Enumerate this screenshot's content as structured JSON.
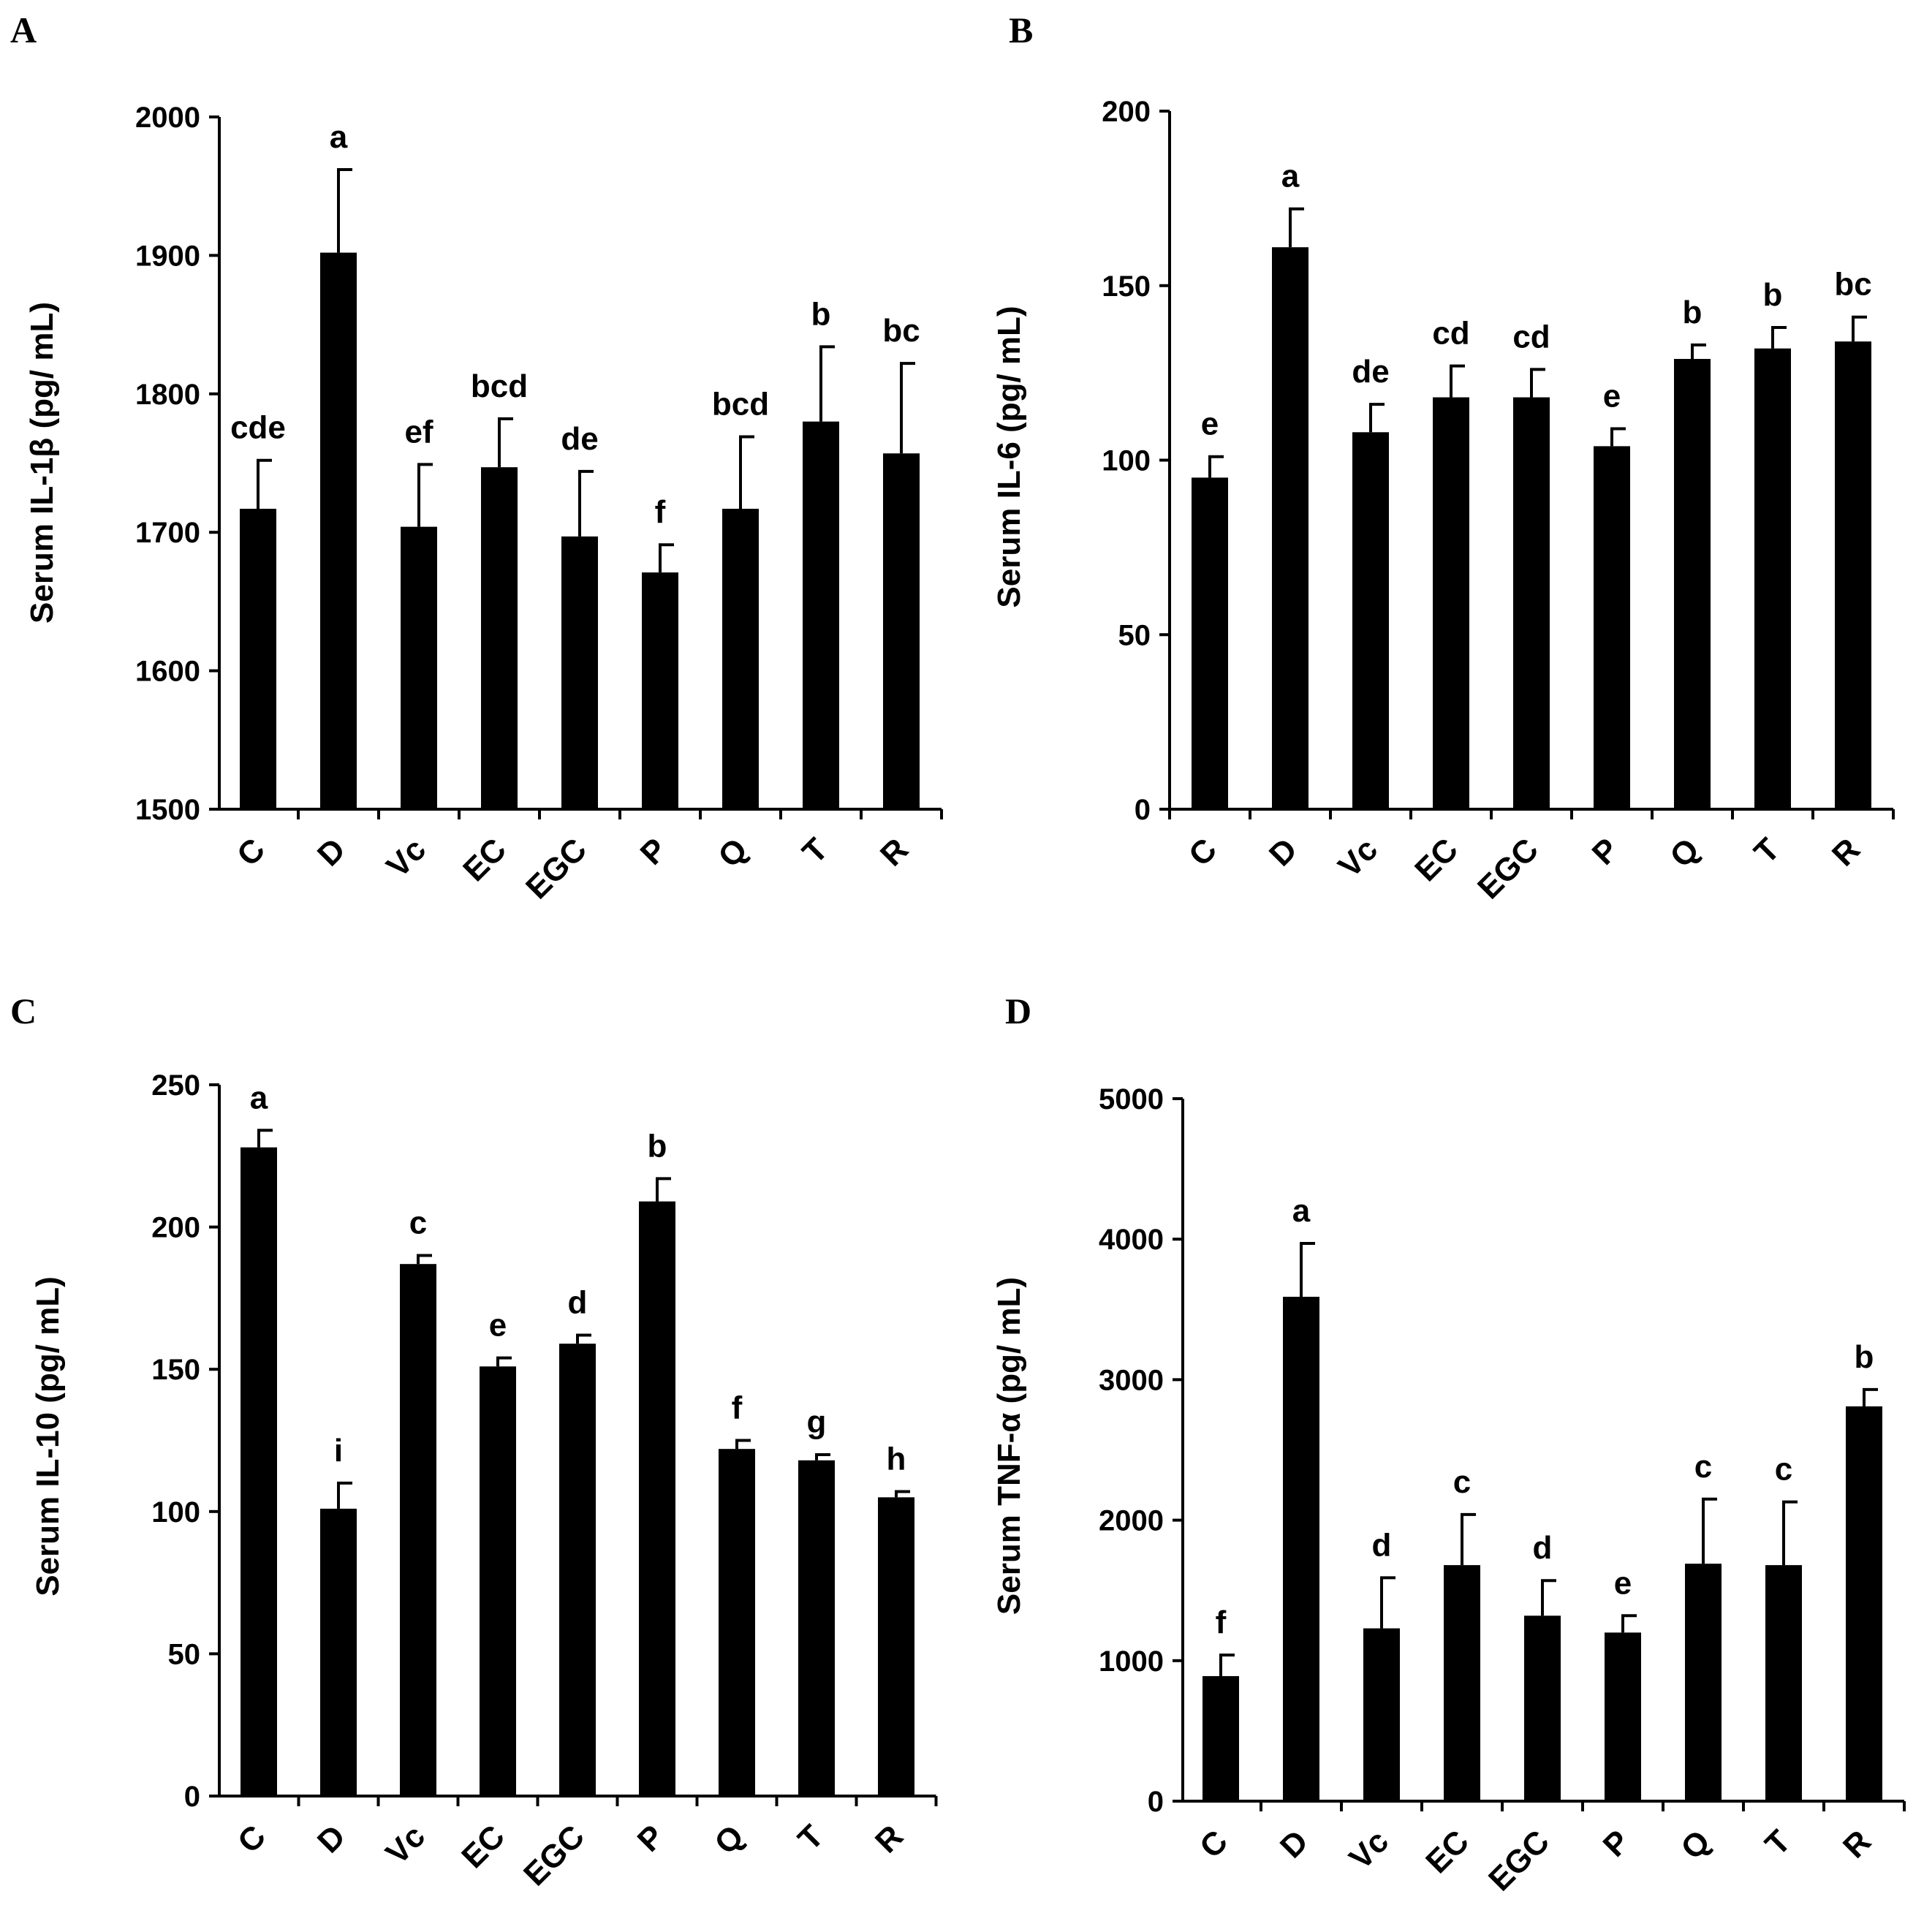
{
  "chart_data": [
    {
      "panel": "A",
      "type": "bar",
      "ylabel": "Serum IL-1β (pg/ mL)",
      "ylim": [
        1500,
        2000
      ],
      "yticks": [
        1500,
        1600,
        1700,
        1800,
        1900,
        2000
      ],
      "categories": [
        "C",
        "D",
        "Vc",
        "EC",
        "EGC",
        "P",
        "Q",
        "T",
        "R"
      ],
      "values": [
        1717,
        1902,
        1704,
        1747,
        1697,
        1671,
        1717,
        1780,
        1757
      ],
      "errors": [
        35,
        60,
        45,
        35,
        47,
        20,
        52,
        54,
        65
      ],
      "significance": [
        "cde",
        "a",
        "ef",
        "bcd",
        "de",
        "f",
        "bcd",
        "b",
        "bc"
      ],
      "color": "#000000"
    },
    {
      "panel": "B",
      "type": "bar",
      "ylabel": "Serum IL-6 (pg/ mL)",
      "ylim": [
        0,
        200
      ],
      "yticks": [
        0,
        50,
        100,
        150,
        200
      ],
      "categories": [
        "C",
        "D",
        "Vc",
        "EC",
        "EGC",
        "P",
        "Q",
        "T",
        "R"
      ],
      "values": [
        95,
        161,
        108,
        118,
        118,
        104,
        129,
        132,
        134
      ],
      "errors": [
        6,
        11,
        8,
        9,
        8,
        5,
        4,
        6,
        7
      ],
      "significance": [
        "e",
        "a",
        "de",
        "cd",
        "cd",
        "e",
        "b",
        "b",
        "bc"
      ],
      "color": "#000000"
    },
    {
      "panel": "C",
      "type": "bar",
      "ylabel": "Serum IL-10 (pg/ mL)",
      "ylim": [
        0,
        250
      ],
      "yticks": [
        0,
        50,
        100,
        150,
        200,
        250
      ],
      "categories": [
        "C",
        "D",
        "Vc",
        "EC",
        "EGC",
        "P",
        "Q",
        "T",
        "R"
      ],
      "values": [
        228,
        101,
        187,
        151,
        159,
        209,
        122,
        118,
        105
      ],
      "errors": [
        6,
        9,
        3,
        3,
        3,
        8,
        3,
        2,
        2
      ],
      "significance": [
        "a",
        "i",
        "c",
        "e",
        "d",
        "b",
        "f",
        "g",
        "h"
      ],
      "color": "#000000"
    },
    {
      "panel": "D",
      "type": "bar",
      "ylabel": "Serum TNF-α (pg/ mL)",
      "ylim": [
        0,
        5000
      ],
      "yticks": [
        0,
        1000,
        2000,
        3000,
        4000,
        5000
      ],
      "categories": [
        "C",
        "D",
        "Vc",
        "EC",
        "EGC",
        "P",
        "Q",
        "T",
        "R"
      ],
      "values": [
        890,
        3590,
        1230,
        1680,
        1320,
        1200,
        1690,
        1680,
        2810
      ],
      "errors": [
        150,
        380,
        360,
        360,
        250,
        120,
        460,
        450,
        120
      ],
      "significance": [
        "f",
        "a",
        "d",
        "c",
        "d",
        "e",
        "c",
        "c",
        "b"
      ],
      "color": "#000000"
    }
  ]
}
